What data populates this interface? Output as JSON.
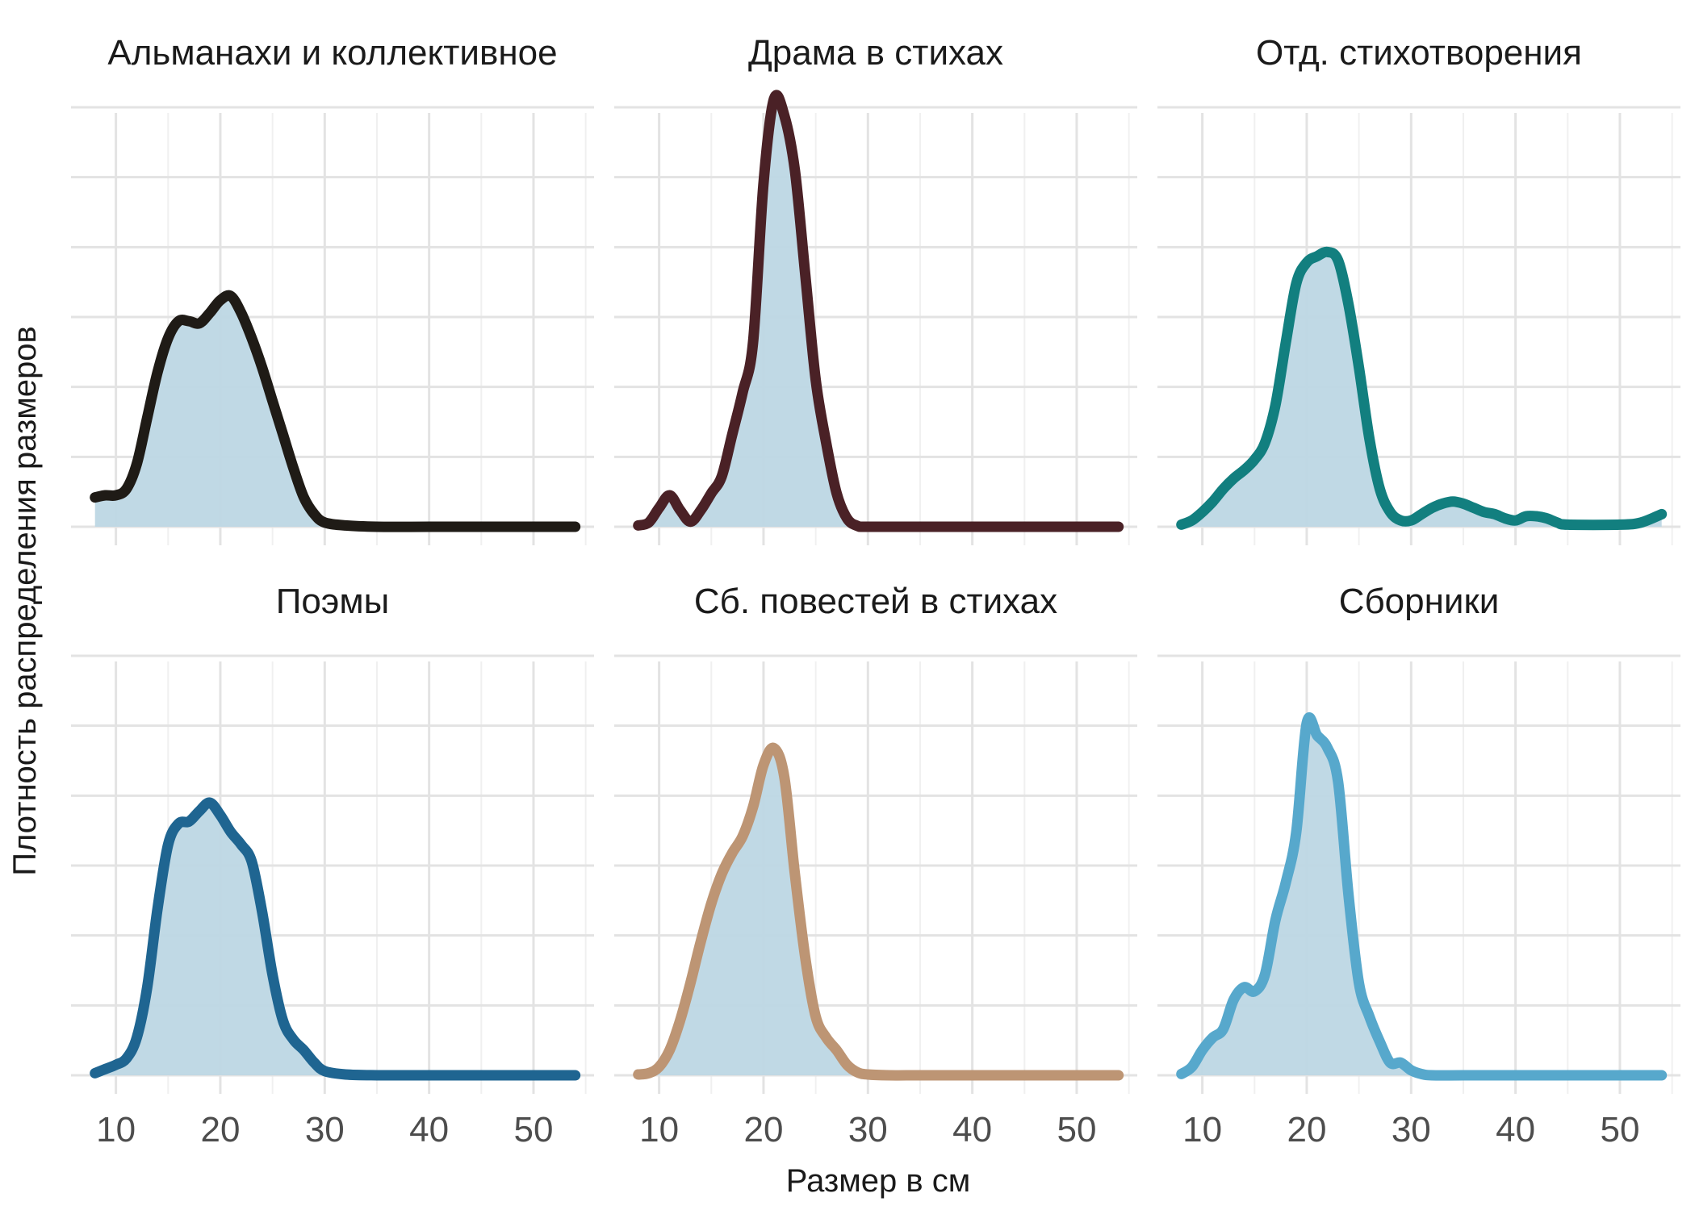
{
  "chart_data": {
    "type": "line",
    "xlabel": "Размер в см",
    "ylabel": "Плотность распределения размеров",
    "xlim": [
      5.7,
      55.8
    ],
    "ylim": [
      0,
      1
    ],
    "x_ticks": [
      10,
      20,
      30,
      40,
      50
    ],
    "x_tick_labels": [
      "10",
      "20",
      "30",
      "40",
      "50"
    ],
    "y_gridlines": [
      0,
      0.1667,
      0.3333,
      0.5,
      0.6667,
      0.8333,
      1.0
    ],
    "fill_color": "#bdd7e4",
    "grid": true,
    "panels": [
      {
        "title": "Альманахи и коллективное",
        "color": "#1f1b16",
        "x": [
          8,
          9,
          10,
          11,
          12,
          13,
          14,
          15,
          16,
          17,
          18,
          19,
          20,
          21,
          22,
          23,
          24,
          25,
          26,
          27,
          28,
          29,
          30,
          32,
          35,
          40,
          45,
          50,
          54
        ],
        "y": [
          0.07,
          0.075,
          0.075,
          0.09,
          0.15,
          0.26,
          0.37,
          0.45,
          0.49,
          0.49,
          0.485,
          0.51,
          0.54,
          0.55,
          0.51,
          0.45,
          0.38,
          0.3,
          0.22,
          0.14,
          0.07,
          0.03,
          0.01,
          0.003,
          0,
          0,
          0,
          0,
          0
        ]
      },
      {
        "title": "Драма в стихах",
        "color": "#4a2126",
        "x": [
          8,
          9,
          10,
          11,
          12,
          13,
          14,
          15,
          16,
          17,
          18,
          19,
          20,
          21,
          22,
          23,
          24,
          25,
          26,
          27,
          28,
          29,
          30,
          35,
          40,
          45,
          50,
          54
        ],
        "y": [
          0.003,
          0.01,
          0.045,
          0.075,
          0.04,
          0.012,
          0.04,
          0.08,
          0.12,
          0.22,
          0.32,
          0.44,
          0.82,
          1.02,
          0.98,
          0.85,
          0.6,
          0.35,
          0.2,
          0.08,
          0.02,
          0.002,
          0,
          0,
          0,
          0,
          0,
          0
        ]
      },
      {
        "title": "Отд. стихотворения",
        "color": "#127f7f",
        "x": [
          8,
          9,
          10,
          11,
          12,
          13,
          14,
          15,
          16,
          17,
          18,
          19,
          20,
          21,
          22,
          23,
          24,
          25,
          26,
          27,
          28,
          29,
          30,
          31,
          32,
          33,
          34,
          35,
          36,
          37,
          38,
          39,
          40,
          41,
          42,
          43,
          44,
          45,
          50,
          52,
          54
        ],
        "y": [
          0.005,
          0.015,
          0.035,
          0.06,
          0.09,
          0.115,
          0.135,
          0.16,
          0.2,
          0.29,
          0.44,
          0.58,
          0.63,
          0.645,
          0.655,
          0.635,
          0.53,
          0.38,
          0.21,
          0.09,
          0.035,
          0.015,
          0.015,
          0.03,
          0.045,
          0.055,
          0.06,
          0.055,
          0.045,
          0.035,
          0.03,
          0.02,
          0.015,
          0.025,
          0.025,
          0.02,
          0.01,
          0.005,
          0.005,
          0.01,
          0.03
        ]
      },
      {
        "title": "Поэмы",
        "color": "#1f6591",
        "x": [
          8,
          9,
          10,
          11,
          12,
          13,
          14,
          15,
          16,
          17,
          18,
          19,
          20,
          21,
          22,
          23,
          24,
          25,
          26,
          27,
          28,
          29,
          30,
          32,
          35,
          40,
          45,
          50,
          54
        ],
        "y": [
          0.005,
          0.015,
          0.025,
          0.04,
          0.09,
          0.21,
          0.4,
          0.55,
          0.6,
          0.605,
          0.63,
          0.65,
          0.62,
          0.58,
          0.55,
          0.51,
          0.39,
          0.24,
          0.13,
          0.085,
          0.06,
          0.03,
          0.01,
          0.002,
          0,
          0,
          0,
          0,
          0
        ]
      },
      {
        "title": "Сб. повестей в стихах",
        "color": "#bd9574",
        "x": [
          8,
          9,
          10,
          11,
          12,
          13,
          14,
          15,
          16,
          17,
          18,
          19,
          20,
          21,
          22,
          23,
          24,
          25,
          26,
          27,
          28,
          29,
          30,
          32,
          35,
          40,
          45,
          50,
          54
        ],
        "y": [
          0.002,
          0.005,
          0.02,
          0.06,
          0.13,
          0.22,
          0.32,
          0.41,
          0.48,
          0.53,
          0.57,
          0.64,
          0.74,
          0.78,
          0.71,
          0.48,
          0.28,
          0.14,
          0.09,
          0.06,
          0.025,
          0.007,
          0.002,
          0,
          0,
          0,
          0,
          0,
          0
        ]
      },
      {
        "title": "Сборники",
        "color": "#57a8cc",
        "x": [
          8,
          9,
          10,
          11,
          12,
          13,
          14,
          15,
          16,
          17,
          18,
          19,
          20,
          21,
          22,
          23,
          24,
          25,
          26,
          27,
          28,
          29,
          30,
          31,
          32,
          35,
          40,
          45,
          50,
          54
        ],
        "y": [
          0.003,
          0.02,
          0.06,
          0.09,
          0.11,
          0.18,
          0.21,
          0.2,
          0.24,
          0.37,
          0.46,
          0.58,
          0.84,
          0.81,
          0.78,
          0.7,
          0.43,
          0.22,
          0.14,
          0.08,
          0.03,
          0.03,
          0.012,
          0.003,
          0,
          0,
          0,
          0,
          0,
          0
        ]
      }
    ]
  }
}
